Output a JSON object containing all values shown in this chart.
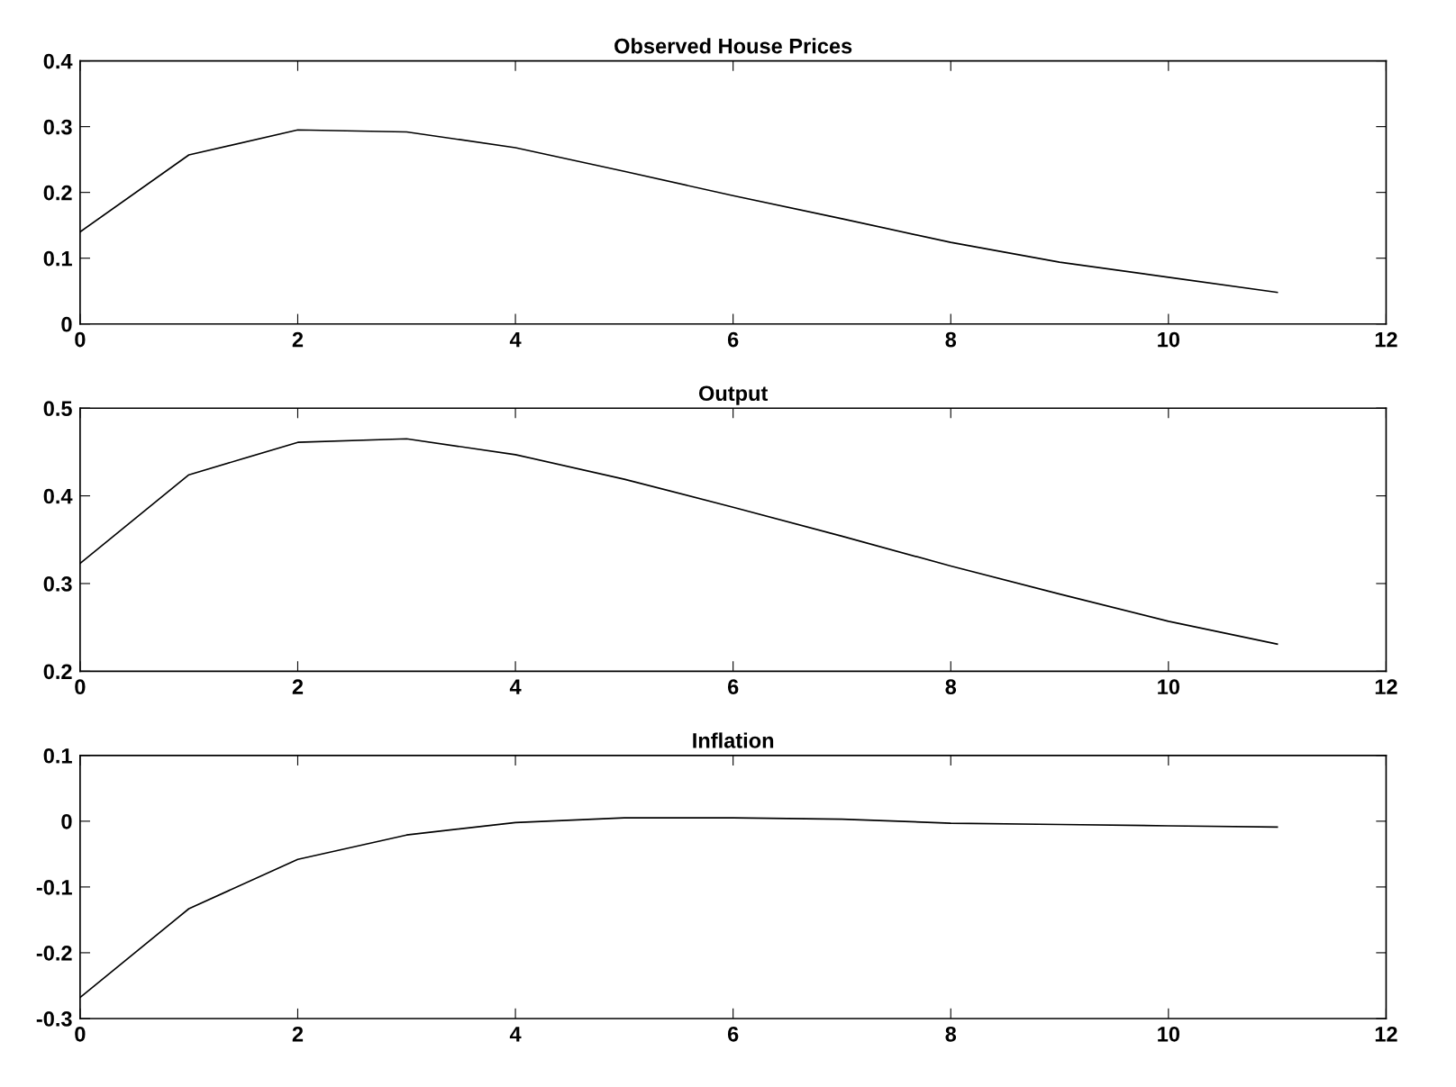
{
  "chart_data": [
    {
      "type": "line",
      "title": "Observed House Prices",
      "x": [
        0,
        1,
        2,
        3,
        4,
        5,
        6,
        7,
        8,
        9,
        10,
        11
      ],
      "series": [
        {
          "color": "#000000",
          "values": [
            0.14,
            0.257,
            0.295,
            0.292,
            0.268,
            0.232,
            0.195,
            0.16,
            0.124,
            0.094,
            0.071,
            0.048
          ]
        }
      ],
      "xlim": [
        0,
        12
      ],
      "xticks": [
        0,
        2,
        4,
        6,
        8,
        10,
        12
      ],
      "ylim": [
        0,
        0.4
      ],
      "yticks": [
        0,
        0.1,
        0.2,
        0.3,
        0.4
      ]
    },
    {
      "type": "line",
      "title": "Output",
      "x": [
        0,
        1,
        2,
        3,
        4,
        5,
        6,
        7,
        8,
        9,
        10,
        11
      ],
      "series": [
        {
          "color": "#000000",
          "values": [
            0.323,
            0.424,
            0.461,
            0.465,
            0.447,
            0.419,
            0.387,
            0.354,
            0.32,
            0.288,
            0.257,
            0.231
          ]
        }
      ],
      "xlim": [
        0,
        12
      ],
      "xticks": [
        0,
        2,
        4,
        6,
        8,
        10,
        12
      ],
      "ylim": [
        0.2,
        0.5
      ],
      "yticks": [
        0.2,
        0.3,
        0.4,
        0.5
      ]
    },
    {
      "type": "line",
      "title": "Inflation",
      "x": [
        0,
        1,
        2,
        3,
        4,
        5,
        6,
        7,
        8,
        9,
        10,
        11
      ],
      "series": [
        {
          "color": "#000000",
          "values": [
            -0.268,
            -0.133,
            -0.058,
            -0.021,
            -0.002,
            0.005,
            0.005,
            0.003,
            -0.003,
            -0.005,
            -0.007,
            -0.009
          ]
        }
      ],
      "xlim": [
        0,
        12
      ],
      "xticks": [
        0,
        2,
        4,
        6,
        8,
        10,
        12
      ],
      "ylim": [
        -0.3,
        0.1
      ],
      "yticks": [
        {
          "value": -0.3,
          "label": "-0.3"
        },
        {
          "value": -0.2,
          "label": "-0.2"
        },
        {
          "value": -0.1,
          "label": "-0.1"
        },
        0,
        0.1
      ]
    }
  ]
}
